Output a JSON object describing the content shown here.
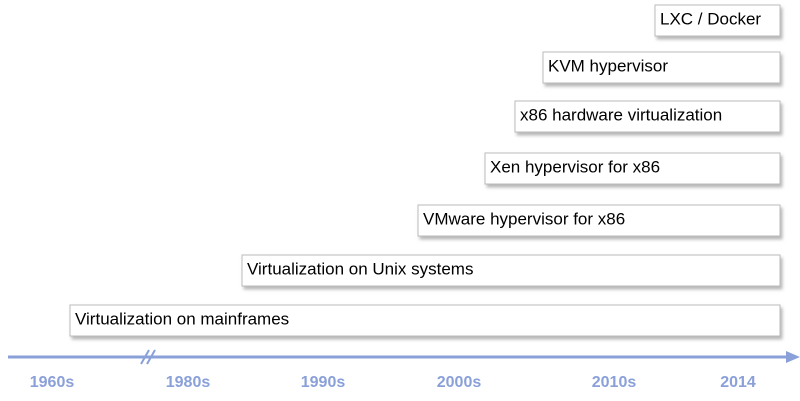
{
  "timeline": {
    "items": [
      {
        "label": "LXC / Docker"
      },
      {
        "label": "KVM hypervisor"
      },
      {
        "label": "x86 hardware virtualization"
      },
      {
        "label": "Xen hypervisor for x86"
      },
      {
        "label": "VMware hypervisor for x86"
      },
      {
        "label": "Virtualization on Unix systems"
      },
      {
        "label": "Virtualization on mainframes"
      }
    ],
    "axis_labels": [
      "1960s",
      "1980s",
      "1990s",
      "2000s",
      "2010s",
      "2014"
    ]
  }
}
